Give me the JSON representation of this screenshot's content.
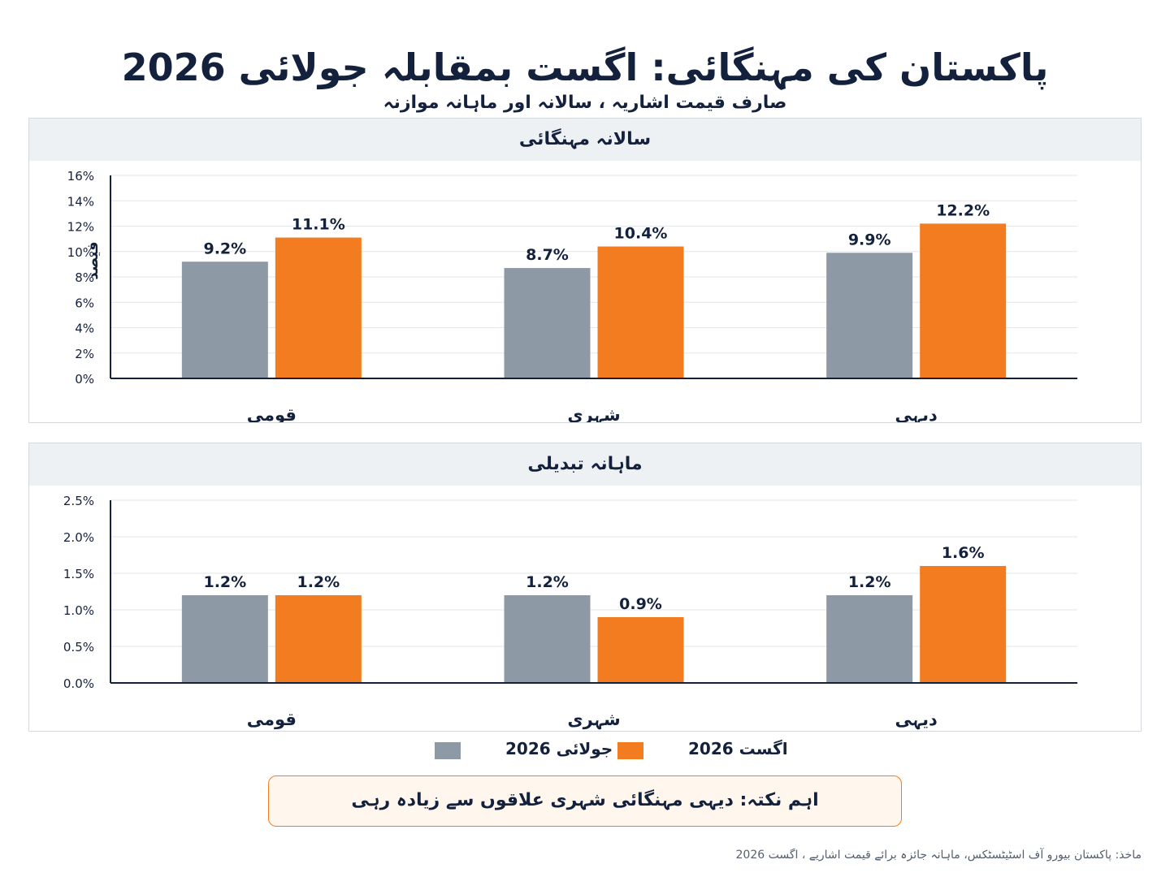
{
  "title": "پاکستان کی مہنگائی: اگست بمقابلہ جولائی 2026",
  "subtitle": "صارف قیمت اشاریہ ، سالانہ اور ماہانہ موازنہ",
  "colors": {
    "july": "#8e99a6",
    "august": "#f47c20",
    "grid": "#e3e6ea",
    "axis": "#14213d",
    "text": "#14213d"
  },
  "chart_data": [
    {
      "type": "bar",
      "title": "سالانہ مہنگائی",
      "ylabel": "فیصد",
      "xlabel": "",
      "categories": [
        "قومی",
        "شہری",
        "دیہی"
      ],
      "series": [
        {
          "name": "جولائی 2026",
          "values": [
            9.2,
            8.7,
            9.9
          ],
          "labels": [
            "9.2%",
            "8.7%",
            "9.9%"
          ]
        },
        {
          "name": "اگست 2026",
          "values": [
            11.1,
            10.4,
            12.2
          ],
          "labels": [
            "11.1%",
            "10.4%",
            "12.2%"
          ]
        }
      ],
      "ylim": [
        0,
        16
      ],
      "yticks": [
        0,
        2,
        4,
        6,
        8,
        10,
        12,
        14,
        16
      ],
      "ytick_labels": [
        "0%",
        "2%",
        "4%",
        "6%",
        "8%",
        "10%",
        "12%",
        "14%",
        "16%"
      ],
      "grid": true
    },
    {
      "type": "bar",
      "title": "ماہانہ تبدیلی",
      "ylabel": "",
      "xlabel": "",
      "categories": [
        "قومی",
        "شہری",
        "دیہی"
      ],
      "series": [
        {
          "name": "جولائی 2026",
          "values": [
            1.2,
            1.2,
            1.2
          ],
          "labels": [
            "1.2%",
            "1.2%",
            "1.2%"
          ]
        },
        {
          "name": "اگست 2026",
          "values": [
            1.2,
            0.9,
            1.6
          ],
          "labels": [
            "1.2%",
            "0.9%",
            "1.6%"
          ]
        }
      ],
      "ylim": [
        0,
        2.5
      ],
      "yticks": [
        0,
        0.5,
        1,
        1.5,
        2,
        2.5
      ],
      "ytick_labels": [
        "0.0%",
        "0.5%",
        "1.0%",
        "1.5%",
        "2.0%",
        "2.5%"
      ],
      "grid": true
    }
  ],
  "legend": {
    "placement": "bottom-center",
    "july_label": "جولائی 2026",
    "august_label": "اگست 2026"
  },
  "note": "اہم نکتہ: دیہی مہنگائی شہری علاقوں سے زیادہ رہی",
  "source": "ماخذ: پاکستان بیورو آف اسٹیٹسٹکس، ماہانہ جائزہ برائے قیمت اشاریے ، اگست 2026"
}
